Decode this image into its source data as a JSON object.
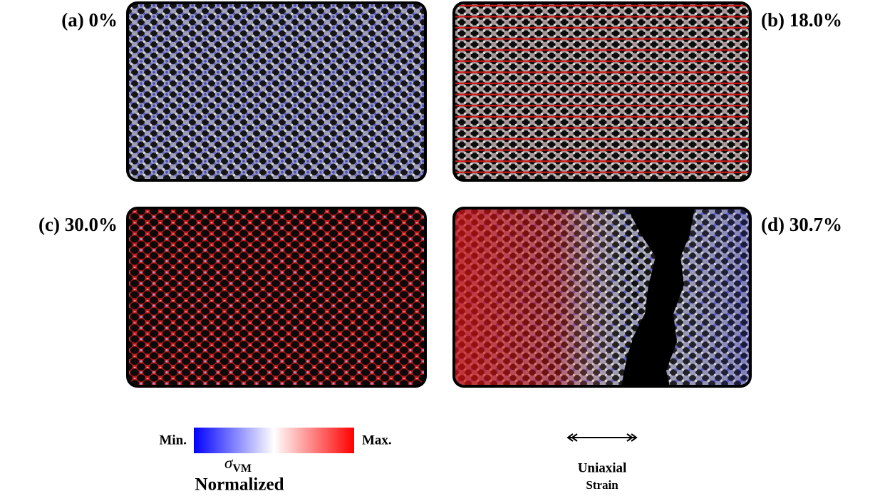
{
  "panels": [
    {
      "label": "(a) 0%"
    },
    {
      "label": "(b) 18.0%"
    },
    {
      "label": "(c) 30.0%"
    },
    {
      "label": "(d) 30.7%"
    }
  ],
  "colorbar": {
    "min_label": "Min.",
    "max_label": "Max.",
    "symbol": "σ",
    "symbol_subscript": "VM",
    "caption": "Normalized"
  },
  "strain": {
    "line1": "Uniaxial",
    "line2": "Strain"
  }
}
